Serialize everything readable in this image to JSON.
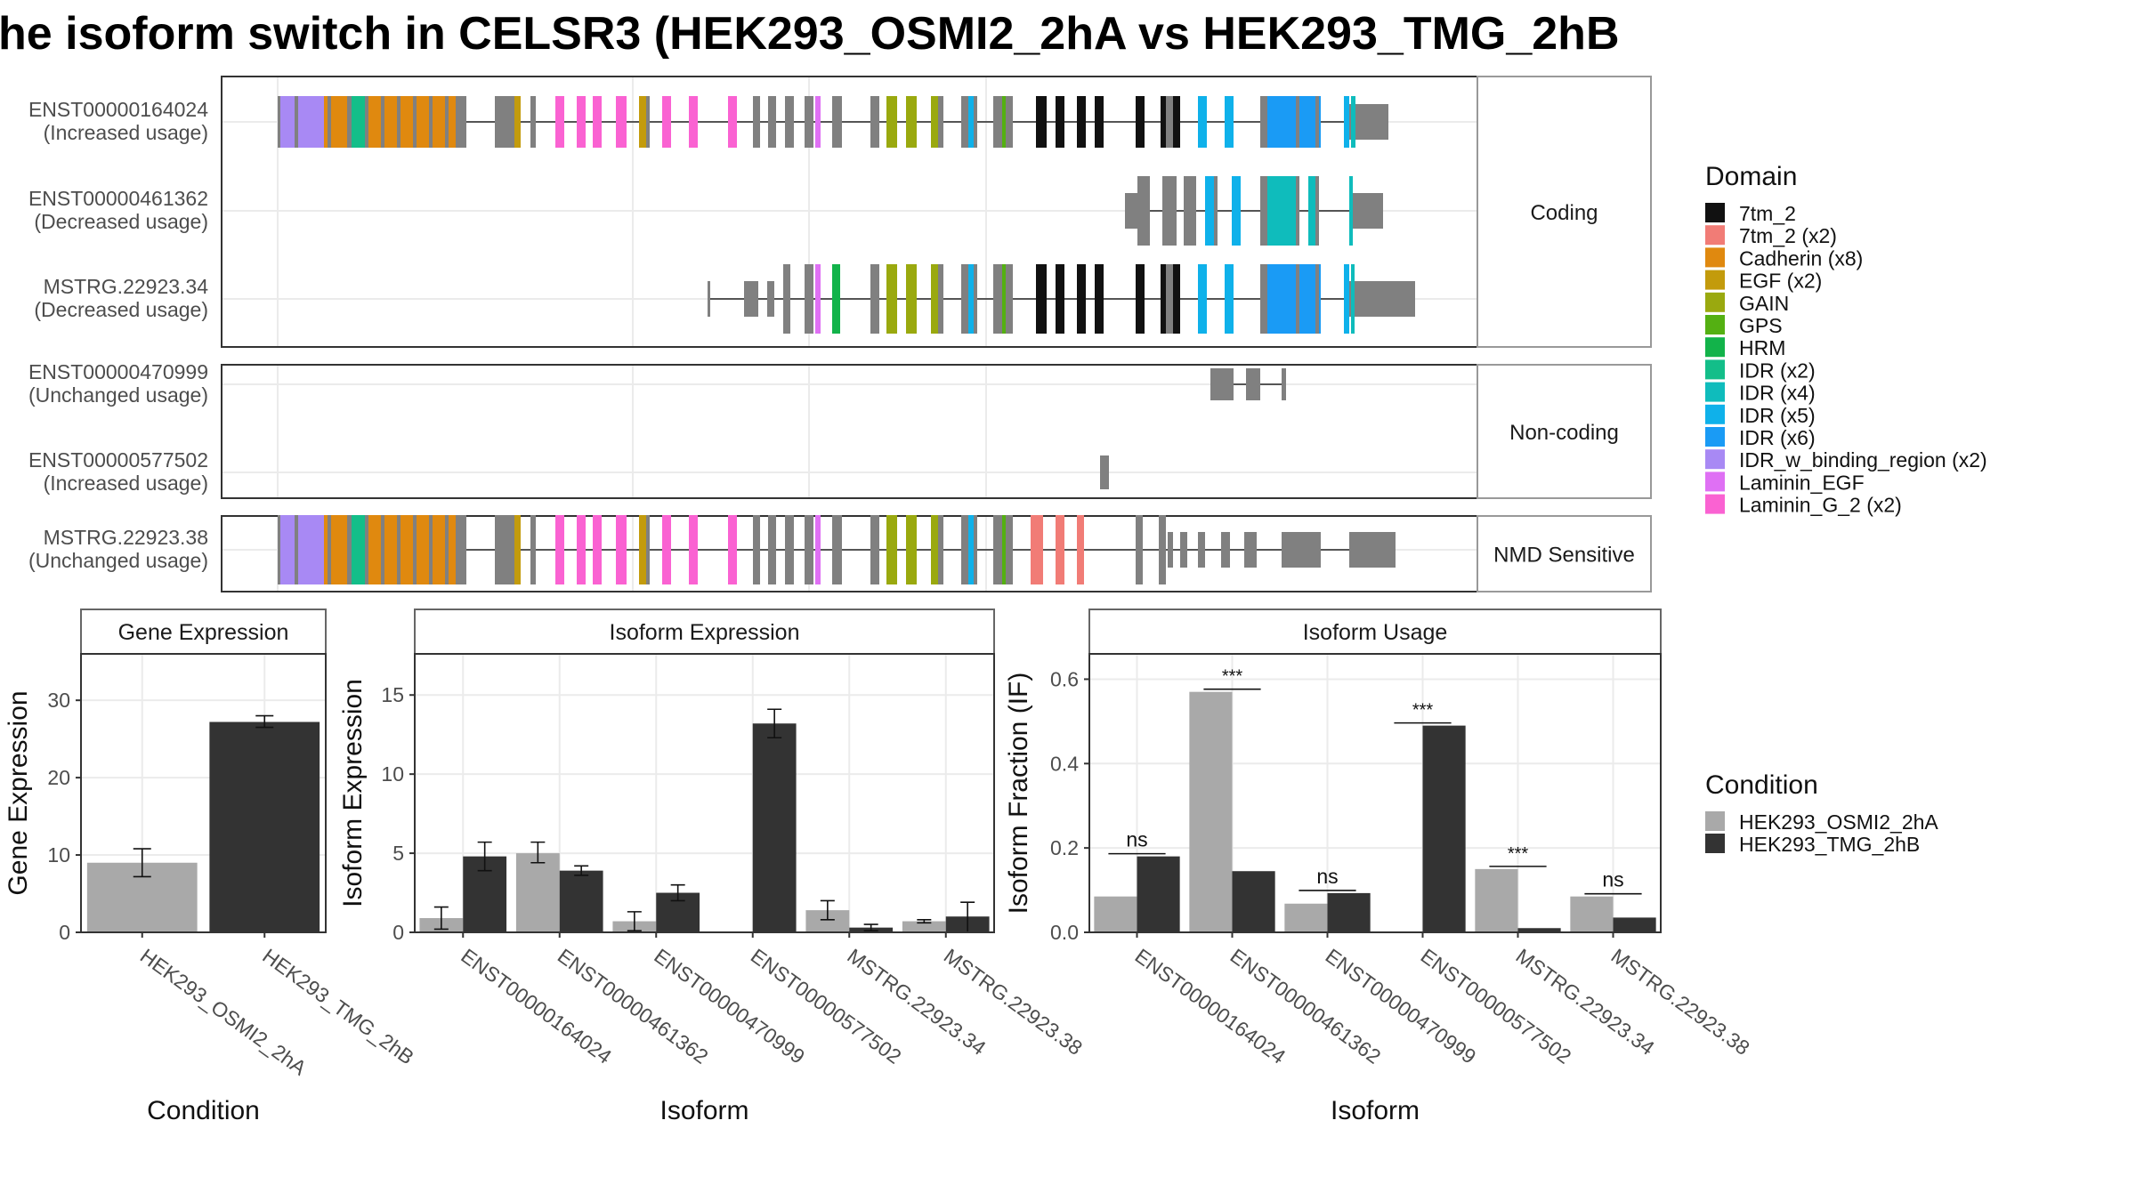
{
  "title": "he isoform switch in CELSR3 (HEK293_OSMI2_2hA vs HEK293_TMG_2hB",
  "colors": {
    "7tm_2": "#111111",
    "7tm_2 (x2)": "#f17c76",
    "Cadherin (x8)": "#e0890f",
    "EGF (x2)": "#c39b0c",
    "GAIN": "#9aa90f",
    "GPS": "#54b012",
    "HRM": "#12b34a",
    "IDR (x2)": "#13be89",
    "IDR (x4)": "#0fbcbc",
    "IDR (x5)": "#0fb1ea",
    "IDR (x6)": "#1a9bf5",
    "IDR_w_binding_region (x2)": "#a889f4",
    "Laminin_EGF": "#df70f4",
    "Laminin_G_2 (x2)": "#fa62d2",
    "exon": "#808080",
    "cond_a": "#a9a9a9",
    "cond_b": "#333333"
  },
  "structure": {
    "panels": [
      {
        "label": "Coding",
        "transcripts": [
          {
            "id": "ENST00000164024",
            "usage": "(Increased usage)"
          },
          {
            "id": "ENST00000461362",
            "usage": "(Decreased usage)"
          },
          {
            "id": "MSTRG.22923.34",
            "usage": "(Decreased usage)"
          }
        ]
      },
      {
        "label": "Non-coding",
        "transcripts": [
          {
            "id": "ENST00000470999",
            "usage": "(Unchanged usage)"
          },
          {
            "id": "ENST00000577502",
            "usage": "(Increased usage)"
          }
        ]
      },
      {
        "label": "NMD Sensitive",
        "transcripts": [
          {
            "id": "MSTRG.22923.38",
            "usage": "(Unchanged usage)"
          }
        ]
      }
    ]
  },
  "legend_domain": {
    "title": "Domain",
    "items": [
      "7tm_2",
      "7tm_2 (x2)",
      "Cadherin (x8)",
      "EGF (x2)",
      "GAIN",
      "GPS",
      "HRM",
      "IDR (x2)",
      "IDR (x4)",
      "IDR (x5)",
      "IDR (x6)",
      "IDR_w_binding_region (x2)",
      "Laminin_EGF",
      "Laminin_G_2 (x2)"
    ]
  },
  "legend_condition": {
    "title": "Condition",
    "items": [
      "HEK293_OSMI2_2hA",
      "HEK293_TMG_2hB"
    ]
  },
  "chart_data": [
    {
      "type": "bar",
      "title": "Gene Expression",
      "xlabel": "Condition",
      "ylabel": "Gene Expression",
      "categories": [
        "HEK293_OSMI2_2hA",
        "HEK293_TMG_2hB"
      ],
      "values": [
        9,
        27.2
      ],
      "error_low": [
        7.2,
        26.5
      ],
      "error_high": [
        10.8,
        28.0
      ],
      "ylim": [
        0,
        36
      ],
      "yticks": [
        0,
        10,
        20,
        30
      ]
    },
    {
      "type": "bar",
      "title": "Isoform Expression",
      "xlabel": "Isoform",
      "ylabel": "Isoform Expression",
      "categories": [
        "ENST00000164024",
        "ENST00000461362",
        "ENST00000470999",
        "ENST00000577502",
        "MSTRG.22923.34",
        "MSTRG.22923.38"
      ],
      "series": [
        {
          "name": "HEK293_OSMI2_2hA",
          "values": [
            0.9,
            5.0,
            0.7,
            0.0,
            1.4,
            0.7
          ],
          "error_low": [
            0.2,
            4.4,
            0.1,
            0.0,
            0.8,
            0.6
          ],
          "error_high": [
            1.6,
            5.7,
            1.3,
            0.0,
            2.0,
            0.8
          ]
        },
        {
          "name": "HEK293_TMG_2hB",
          "values": [
            4.8,
            3.9,
            2.5,
            13.2,
            0.3,
            1.0
          ],
          "error_low": [
            3.9,
            3.6,
            2.0,
            12.3,
            0.1,
            0.0
          ],
          "error_high": [
            5.7,
            4.2,
            3.0,
            14.1,
            0.5,
            1.9
          ]
        }
      ],
      "ylim": [
        0,
        17.6
      ],
      "yticks": [
        0,
        5,
        10,
        15
      ]
    },
    {
      "type": "bar",
      "title": "Isoform Usage",
      "xlabel": "Isoform",
      "ylabel": "Isoform Fraction (IF)",
      "categories": [
        "ENST00000164024",
        "ENST00000461362",
        "ENST00000470999",
        "ENST00000577502",
        "MSTRG.22923.34",
        "MSTRG.22923.38"
      ],
      "series": [
        {
          "name": "HEK293_OSMI2_2hA",
          "values": [
            0.085,
            0.57,
            0.068,
            0.0,
            0.15,
            0.085
          ]
        },
        {
          "name": "HEK293_TMG_2hB",
          "values": [
            0.18,
            0.145,
            0.093,
            0.49,
            0.01,
            0.035
          ]
        }
      ],
      "significance": [
        "ns",
        "***",
        "ns",
        "***",
        "***",
        "ns"
      ],
      "ylim": [
        0,
        0.66
      ],
      "yticks": [
        0.0,
        0.2,
        0.4,
        0.6
      ]
    }
  ]
}
